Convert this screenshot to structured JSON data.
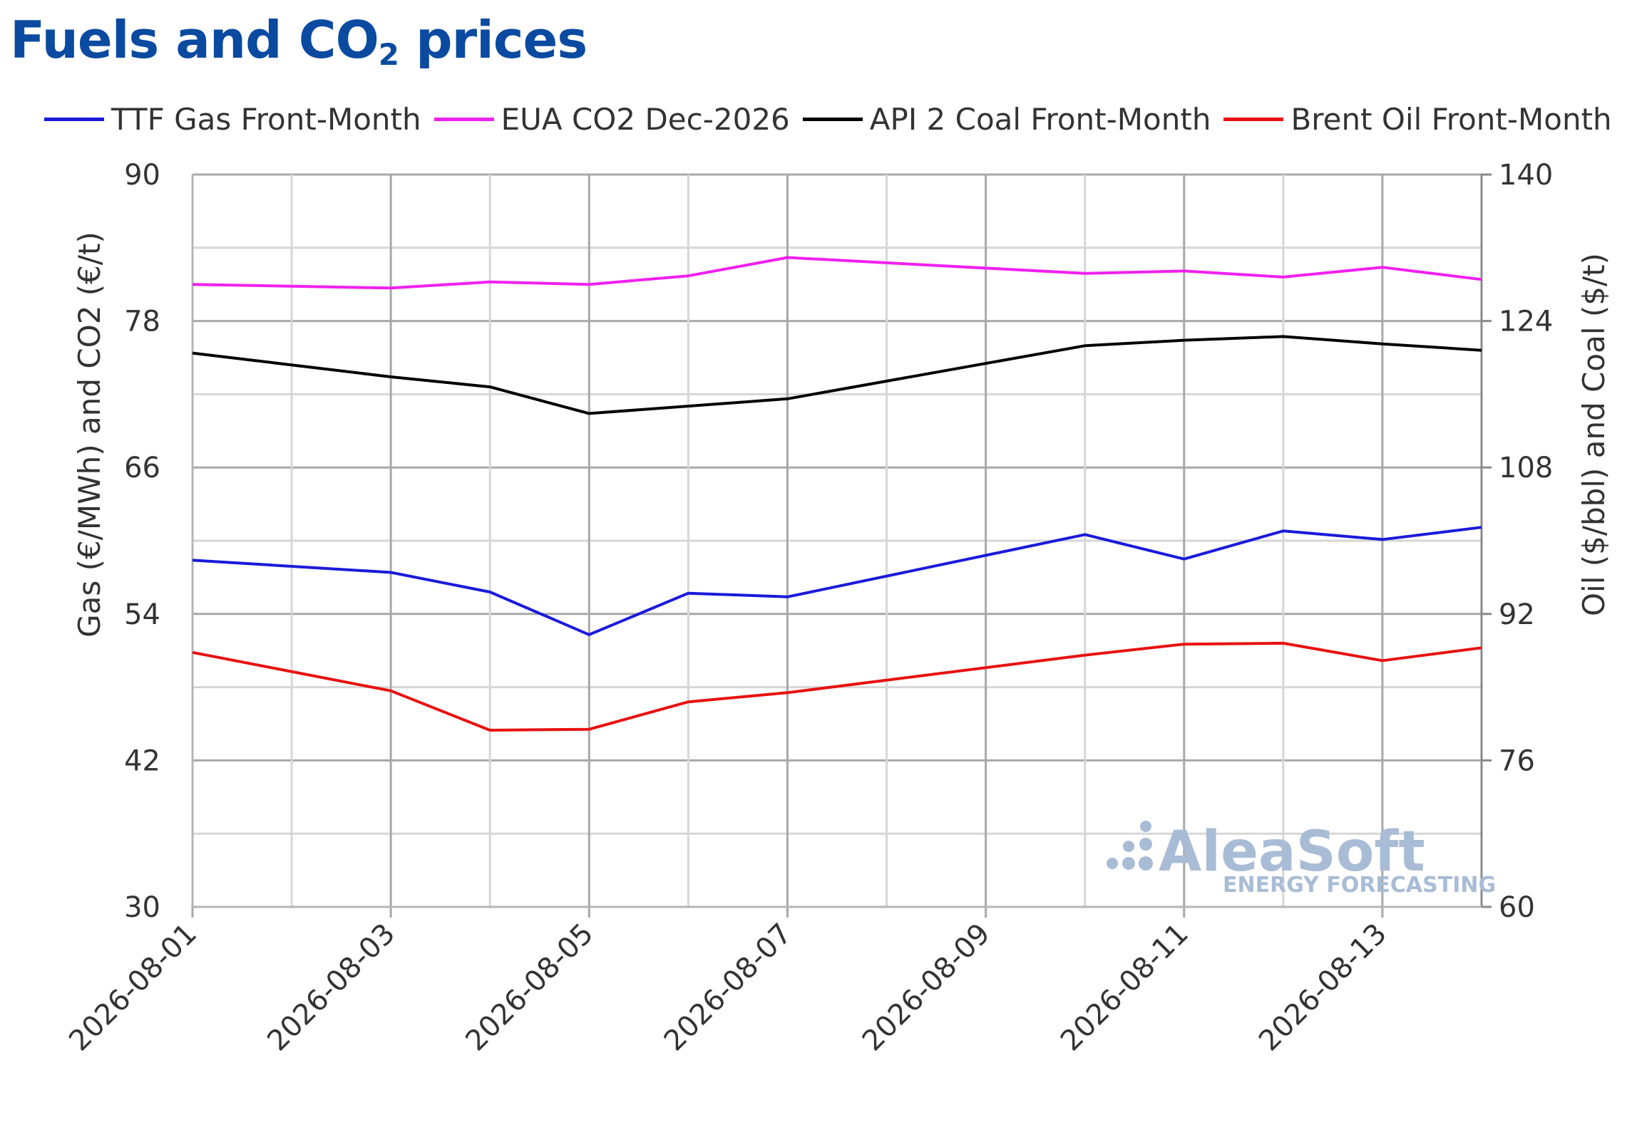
{
  "title": {
    "main": "Fuels and CO",
    "sub": "2",
    "rest": " prices"
  },
  "watermark": {
    "brand": "AleaSoft",
    "tagline": "ENERGY FORECASTING"
  },
  "chart_data": {
    "type": "line",
    "x": [
      "2026-08-01",
      "2026-08-02",
      "2026-08-03",
      "2026-08-04",
      "2026-08-05",
      "2026-08-06",
      "2026-08-07",
      "2026-08-08",
      "2026-08-09",
      "2026-08-10",
      "2026-08-11",
      "2026-08-12",
      "2026-08-13",
      "2026-08-14"
    ],
    "x_tick_labels": [
      "2026-08-01",
      "2026-08-03",
      "2026-08-05",
      "2026-08-07",
      "2026-08-09",
      "2026-08-11",
      "2026-08-13"
    ],
    "ylabel_left": "Gas (€/MWh) and CO2 (€/t)",
    "ylabel_right": "Oil ($/bbl) and Coal ($/t)",
    "ylim_left": [
      30,
      90
    ],
    "ylim_right": [
      60,
      140
    ],
    "y_ticks_left": [
      30,
      42,
      54,
      66,
      78,
      90
    ],
    "y_ticks_right": [
      60,
      76,
      92,
      108,
      124,
      140
    ],
    "grid": true,
    "legend_position": "top",
    "series": [
      {
        "name": "TTF Gas Front-Month",
        "axis": "left",
        "color": "#1a1adb",
        "values": [
          58.4,
          null,
          57.4,
          55.8,
          52.3,
          55.7,
          55.4,
          null,
          null,
          60.5,
          58.5,
          60.8,
          60.1,
          61.1
        ]
      },
      {
        "name": "EUA CO2 Dec-2026",
        "axis": "left",
        "color": "#f020f0",
        "values": [
          81.0,
          null,
          80.7,
          81.2,
          81.0,
          81.7,
          83.2,
          null,
          null,
          81.9,
          82.1,
          81.6,
          82.4,
          81.4
        ]
      },
      {
        "name": "API 2 Coal Front-Month",
        "axis": "right",
        "color": "#000000",
        "values": [
          120.5,
          null,
          117.9,
          116.8,
          113.9,
          null,
          115.5,
          null,
          null,
          121.3,
          121.9,
          122.3,
          121.5,
          120.8
        ]
      },
      {
        "name": "Brent Oil Front-Month",
        "axis": "right",
        "color": "#e81010",
        "values": [
          87.8,
          null,
          83.6,
          79.3,
          79.4,
          82.4,
          83.4,
          null,
          null,
          87.5,
          88.7,
          88.8,
          86.9,
          88.3
        ]
      }
    ]
  }
}
